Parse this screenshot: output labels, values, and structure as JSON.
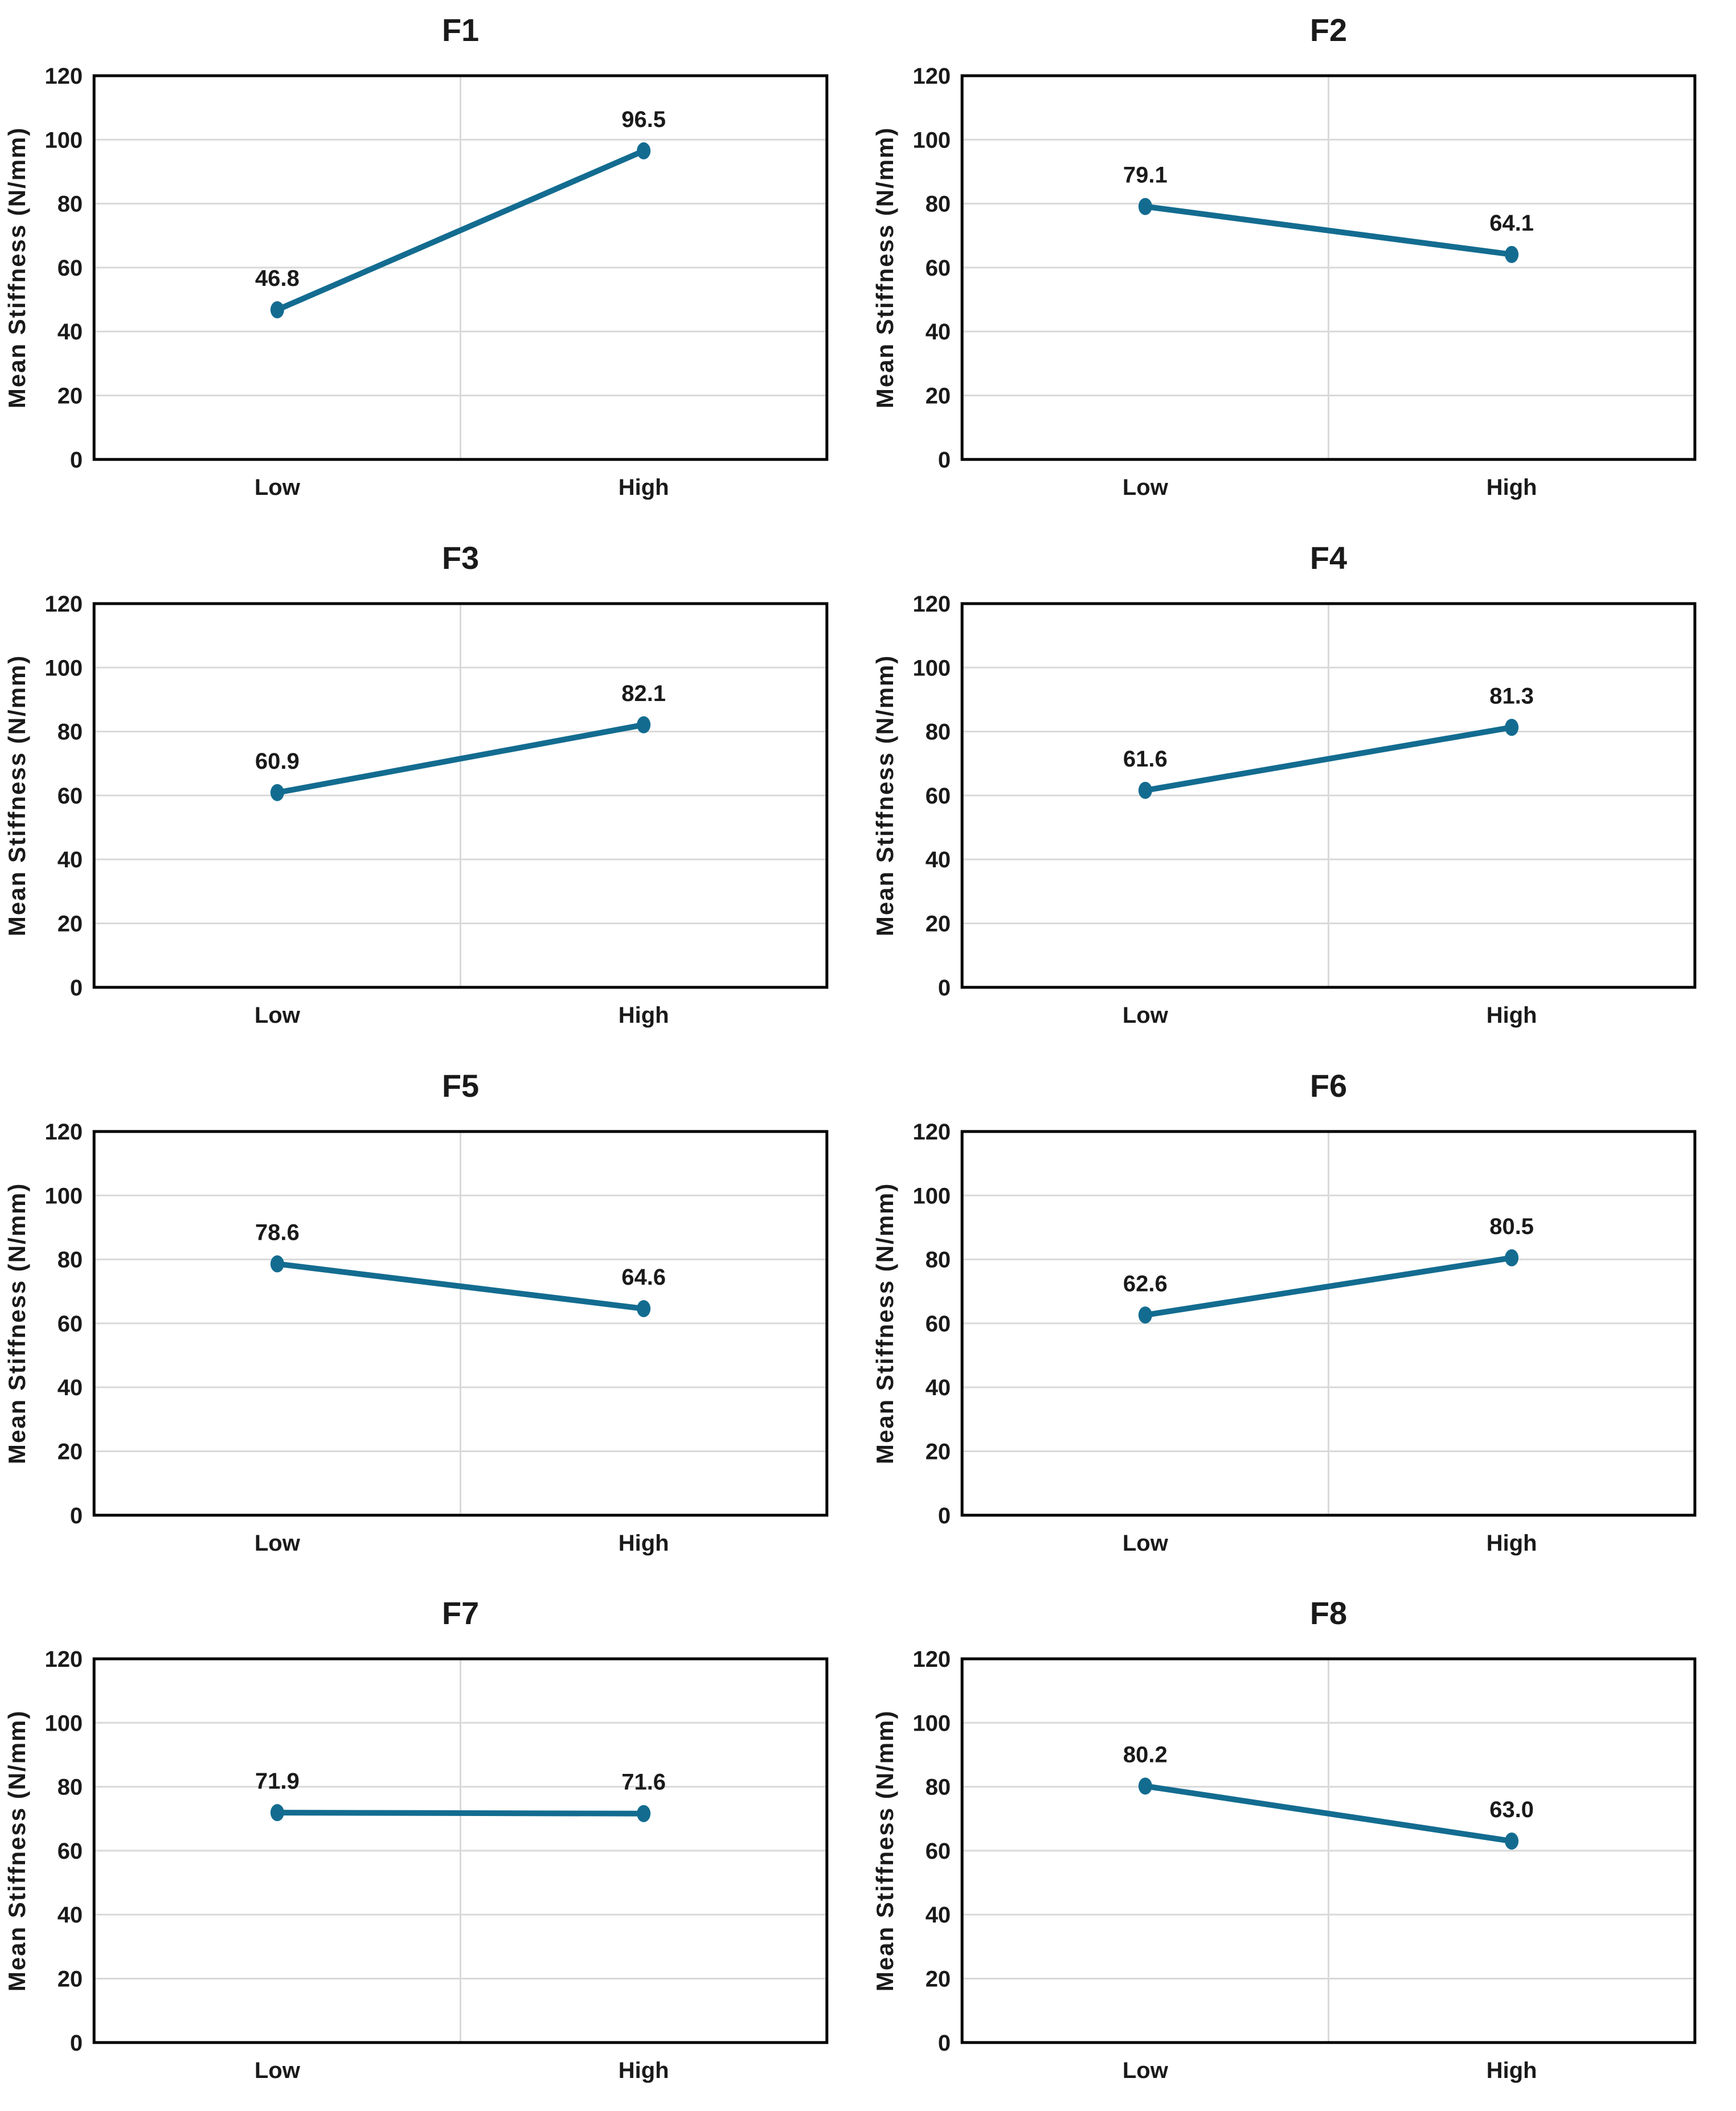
{
  "page": {
    "background": "#FFFFFF"
  },
  "styles": {
    "accent_color": "#136C90",
    "gridline_color": "#D9D9D9",
    "axis_color": "#000000",
    "text_color": "#1A1A1A"
  },
  "chart_data": [
    {
      "id": "f1",
      "type": "line",
      "title": "F1",
      "categories": [
        "Low",
        "High"
      ],
      "values": [
        46.8,
        96.5
      ],
      "labels": [
        "46.8",
        "96.5"
      ],
      "xlabel": "",
      "ylabel": "Mean Stiffness (N/mm)",
      "ylim": [
        0,
        120
      ],
      "yticks": [
        0,
        20,
        40,
        60,
        80,
        100,
        120
      ],
      "grid": true,
      "legend": "none"
    },
    {
      "id": "f2",
      "type": "line",
      "title": "F2",
      "categories": [
        "Low",
        "High"
      ],
      "values": [
        79.1,
        64.1
      ],
      "labels": [
        "79.1",
        "64.1"
      ],
      "xlabel": "",
      "ylabel": "Mean Stiffness (N/mm)",
      "ylim": [
        0,
        120
      ],
      "yticks": [
        0,
        20,
        40,
        60,
        80,
        100,
        120
      ],
      "grid": true,
      "legend": "none"
    },
    {
      "id": "f3",
      "type": "line",
      "title": "F3",
      "categories": [
        "Low",
        "High"
      ],
      "values": [
        60.9,
        82.1
      ],
      "labels": [
        "60.9",
        "82.1"
      ],
      "xlabel": "",
      "ylabel": "Mean Stiffness (N/mm)",
      "ylim": [
        0,
        120
      ],
      "yticks": [
        0,
        20,
        40,
        60,
        80,
        100,
        120
      ],
      "grid": true,
      "legend": "none"
    },
    {
      "id": "f4",
      "type": "line",
      "title": "F4",
      "categories": [
        "Low",
        "High"
      ],
      "values": [
        61.6,
        81.3
      ],
      "labels": [
        "61.6",
        "81.3"
      ],
      "xlabel": "",
      "ylabel": "Mean Stiffness (N/mm)",
      "ylim": [
        0,
        120
      ],
      "yticks": [
        0,
        20,
        40,
        60,
        80,
        100,
        120
      ],
      "grid": true,
      "legend": "none"
    },
    {
      "id": "f5",
      "type": "line",
      "title": "F5",
      "categories": [
        "Low",
        "High"
      ],
      "values": [
        78.6,
        64.6
      ],
      "labels": [
        "78.6",
        "64.6"
      ],
      "xlabel": "",
      "ylabel": "Mean Stiffness (N/mm)",
      "ylim": [
        0,
        120
      ],
      "yticks": [
        0,
        20,
        40,
        60,
        80,
        100,
        120
      ],
      "grid": true,
      "legend": "none"
    },
    {
      "id": "f6",
      "type": "line",
      "title": "F6",
      "categories": [
        "Low",
        "High"
      ],
      "values": [
        62.6,
        80.5
      ],
      "labels": [
        "62.6",
        "80.5"
      ],
      "xlabel": "",
      "ylabel": "Mean Stiffness (N/mm)",
      "ylim": [
        0,
        120
      ],
      "yticks": [
        0,
        20,
        40,
        60,
        80,
        100,
        120
      ],
      "grid": true,
      "legend": "none"
    },
    {
      "id": "f7",
      "type": "line",
      "title": "F7",
      "categories": [
        "Low",
        "High"
      ],
      "values": [
        71.9,
        71.6
      ],
      "labels": [
        "71.9",
        "71.6"
      ],
      "xlabel": "",
      "ylabel": "Mean Stiffness (N/mm)",
      "ylim": [
        0,
        120
      ],
      "yticks": [
        0,
        20,
        40,
        60,
        80,
        100,
        120
      ],
      "grid": true,
      "legend": "none"
    },
    {
      "id": "f8",
      "type": "line",
      "title": "F8",
      "categories": [
        "Low",
        "High"
      ],
      "values": [
        80.2,
        63.0
      ],
      "labels": [
        "80.2",
        "63.0"
      ],
      "xlabel": "",
      "ylabel": "Mean Stiffness (N/mm)",
      "ylim": [
        0,
        120
      ],
      "yticks": [
        0,
        20,
        40,
        60,
        80,
        100,
        120
      ],
      "grid": true,
      "legend": "none"
    }
  ]
}
